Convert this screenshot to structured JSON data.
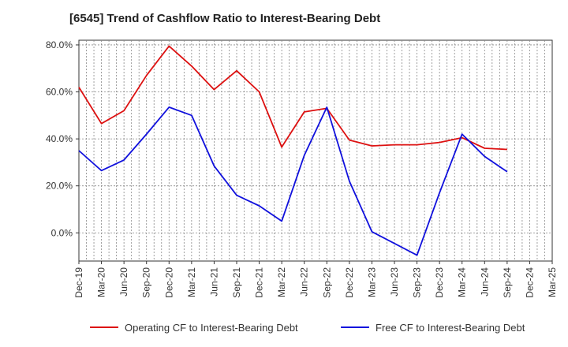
{
  "chart_data": {
    "type": "line",
    "title": "[6545]  Trend of Cashflow Ratio to Interest-Bearing Debt",
    "xlabel": "",
    "ylabel": "",
    "categories": [
      "Dec-19",
      "Mar-20",
      "Jun-20",
      "Sep-20",
      "Dec-20",
      "Mar-21",
      "Jun-21",
      "Sep-21",
      "Dec-21",
      "Mar-22",
      "Jun-22",
      "Sep-22",
      "Dec-22",
      "Mar-23",
      "Jun-23",
      "Sep-23",
      "Dec-23",
      "Mar-24",
      "Jun-24",
      "Sep-24",
      "Dec-24",
      "Mar-25"
    ],
    "x_tick_labels": [
      "Dec-19",
      "Mar-20",
      "Jun-20",
      "Sep-20",
      "Dec-20",
      "Mar-21",
      "Jun-21",
      "Sep-21",
      "Dec-21",
      "Mar-22",
      "Jun-22",
      "Sep-22",
      "Dec-22",
      "Mar-23",
      "Jun-23",
      "Sep-23",
      "Dec-23",
      "Mar-24",
      "Jun-24",
      "Sep-24",
      "Dec-24",
      "Mar-25"
    ],
    "y_tick_labels": [
      "80.0%",
      "60.0%",
      "40.0%",
      "20.0%",
      "0.0%"
    ],
    "y_ticks": [
      80,
      60,
      40,
      20,
      0
    ],
    "ylim": [
      -12,
      82
    ],
    "grid": true,
    "legend_position": "bottom",
    "series": [
      {
        "name": "Operating CF to Interest-Bearing Debt",
        "color": "#dd1111",
        "values": [
          62.0,
          46.5,
          52.0,
          67.0,
          79.5,
          71.0,
          61.0,
          69.0,
          60.0,
          36.5,
          51.5,
          53.0,
          39.5,
          37.0,
          37.5,
          37.5,
          38.5,
          40.5,
          36.0,
          35.5,
          null,
          null
        ]
      },
      {
        "name": "Free CF to Interest-Bearing Debt",
        "color": "#1111dd",
        "values": [
          35.0,
          26.5,
          31.0,
          42.0,
          53.5,
          50.0,
          28.5,
          16.0,
          11.5,
          5.0,
          33.0,
          53.5,
          22.0,
          0.5,
          -4.5,
          -9.5,
          17.0,
          42.0,
          32.5,
          26.0,
          null,
          null
        ]
      }
    ]
  }
}
